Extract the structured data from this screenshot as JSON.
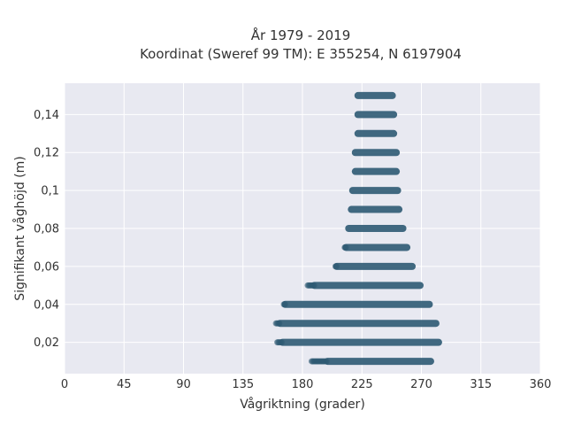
{
  "chart_data": {
    "type": "scatter",
    "title": "År 1979 - 2019",
    "subtitle": "Koordinat (Sweref 99 TM): E 355254, N 6197904",
    "xlabel": "Vågriktning (grader)",
    "ylabel": "Signifikant våghöjd (m)",
    "xlim": [
      0,
      360
    ],
    "ylim": [
      0.0035,
      0.1565
    ],
    "xticks": [
      "0",
      "45",
      "90",
      "135",
      "180",
      "225",
      "270",
      "315",
      "360"
    ],
    "xtick_values": [
      0,
      45,
      90,
      135,
      180,
      225,
      270,
      315,
      360
    ],
    "yticks": [
      "0,02",
      "0,04",
      "0,06",
      "0,08",
      "0,1",
      "0,12",
      "0,14"
    ],
    "ytick_values": [
      0.02,
      0.04,
      0.06,
      0.08,
      0.1,
      0.12,
      0.14
    ],
    "grid": true,
    "marker_color": "#2e5a73",
    "plot_background": "#e8e9f1",
    "bands": [
      {
        "y": 0.01,
        "x_min": 187,
        "dense_min": 199,
        "x_max": 277
      },
      {
        "y": 0.02,
        "x_min": 161,
        "dense_min": 165,
        "x_max": 283
      },
      {
        "y": 0.03,
        "x_min": 160,
        "dense_min": 163,
        "x_max": 281
      },
      {
        "y": 0.04,
        "x_min": 166,
        "dense_min": 167,
        "x_max": 276
      },
      {
        "y": 0.05,
        "x_min": 184,
        "dense_min": 189,
        "x_max": 269
      },
      {
        "y": 0.06,
        "x_min": 205,
        "dense_min": 206,
        "x_max": 263
      },
      {
        "y": 0.07,
        "x_min": 212,
        "dense_min": 213,
        "x_max": 259
      },
      {
        "y": 0.08,
        "x_min": 215,
        "dense_min": 215,
        "x_max": 256
      },
      {
        "y": 0.09,
        "x_min": 217,
        "dense_min": 217,
        "x_max": 253
      },
      {
        "y": 0.1,
        "x_min": 218,
        "dense_min": 218,
        "x_max": 252
      },
      {
        "y": 0.11,
        "x_min": 220,
        "dense_min": 220,
        "x_max": 251
      },
      {
        "y": 0.12,
        "x_min": 220,
        "dense_min": 220,
        "x_max": 251
      },
      {
        "y": 0.13,
        "x_min": 222,
        "dense_min": 222,
        "x_max": 249
      },
      {
        "y": 0.14,
        "x_min": 222,
        "dense_min": 222,
        "x_max": 249
      },
      {
        "y": 0.15,
        "x_min": 222,
        "dense_min": 222,
        "x_max": 248
      }
    ]
  }
}
